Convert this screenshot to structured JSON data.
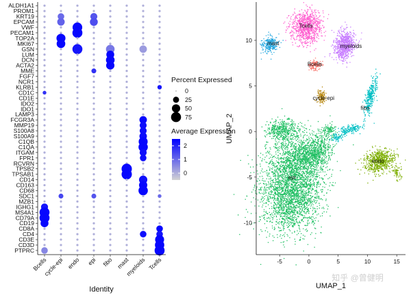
{
  "chart_data": [
    {
      "type": "dotplot",
      "xlabel": "Identity",
      "ylabel": "",
      "identities": [
        "Bcells",
        "cycle-epi",
        "endo",
        "epi",
        "fibo",
        "mast",
        "myeloids",
        "Tcells"
      ],
      "genes": [
        "ALDH1A1",
        "PROM1",
        "KRT19",
        "EPCAM",
        "VWF",
        "PECAM1",
        "TOP2A",
        "MKI67",
        "GSN",
        "LUM",
        "DCN",
        "ACTA2",
        "MME",
        "FGF7",
        "NCR1",
        "KLRB1",
        "CD1C",
        "CD1E",
        "IDO2",
        "IDO1",
        "LAMP3",
        "FCGR3A",
        "MMP19",
        "S100A8",
        "S100A9",
        "C1QB",
        "C1QA",
        "ITGAM",
        "FPR1",
        "RCVRN",
        "TPSB2",
        "TPSAB1",
        "CD14",
        "CD163",
        "CD68",
        "SDC1",
        "MZB1",
        "IGHG1",
        "MS4A1",
        "CD79A",
        "CD19",
        "CD8A",
        "CD4",
        "CD3E",
        "CD3D",
        "PTPRC"
      ],
      "dots": [
        {
          "gene": "KRT19",
          "identity": "cycle-epi",
          "pct": 30,
          "avg": 1.0
        },
        {
          "gene": "KRT19",
          "identity": "epi",
          "pct": 35,
          "avg": 1.3
        },
        {
          "gene": "EPCAM",
          "identity": "cycle-epi",
          "pct": 40,
          "avg": 1.1
        },
        {
          "gene": "EPCAM",
          "identity": "epi",
          "pct": 45,
          "avg": 1.4
        },
        {
          "gene": "VWF",
          "identity": "endo",
          "pct": 70,
          "avg": 2.4
        },
        {
          "gene": "PECAM1",
          "identity": "endo",
          "pct": 75,
          "avg": 2.4
        },
        {
          "gene": "TOP2A",
          "identity": "cycle-epi",
          "pct": 60,
          "avg": 2.4
        },
        {
          "gene": "MKI67",
          "identity": "cycle-epi",
          "pct": 55,
          "avg": 2.4
        },
        {
          "gene": "GSN",
          "identity": "endo",
          "pct": 75,
          "avg": 2.2
        },
        {
          "gene": "GSN",
          "identity": "fibo",
          "pct": 55,
          "avg": 0.8
        },
        {
          "gene": "GSN",
          "identity": "myeloids",
          "pct": 40,
          "avg": 0.3
        },
        {
          "gene": "LUM",
          "identity": "fibo",
          "pct": 45,
          "avg": 2.4
        },
        {
          "gene": "DCN",
          "identity": "fibo",
          "pct": 55,
          "avg": 2.4
        },
        {
          "gene": "ACTA2",
          "identity": "fibo",
          "pct": 50,
          "avg": 2.4
        },
        {
          "gene": "MME",
          "identity": "epi",
          "pct": 15,
          "avg": 1.8
        },
        {
          "gene": "KLRB1",
          "identity": "Tcells",
          "pct": 12,
          "avg": 2.2
        },
        {
          "gene": "CD1C",
          "identity": "Bcells",
          "pct": 8,
          "avg": 1.8
        },
        {
          "gene": "FCGR3A",
          "identity": "myeloids",
          "pct": 40,
          "avg": 2.4
        },
        {
          "gene": "MMP19",
          "identity": "myeloids",
          "pct": 35,
          "avg": 2.3
        },
        {
          "gene": "S100A8",
          "identity": "myeloids",
          "pct": 35,
          "avg": 2.3
        },
        {
          "gene": "S100A9",
          "identity": "myeloids",
          "pct": 40,
          "avg": 2.3
        },
        {
          "gene": "C1QB",
          "identity": "myeloids",
          "pct": 60,
          "avg": 2.4
        },
        {
          "gene": "C1QA",
          "identity": "myeloids",
          "pct": 65,
          "avg": 2.4
        },
        {
          "gene": "ITGAM",
          "identity": "myeloids",
          "pct": 35,
          "avg": 2.3
        },
        {
          "gene": "FPR1",
          "identity": "myeloids",
          "pct": 30,
          "avg": 2.3
        },
        {
          "gene": "TPSB2",
          "identity": "mast",
          "pct": 80,
          "avg": 2.4
        },
        {
          "gene": "TPSAB1",
          "identity": "mast",
          "pct": 80,
          "avg": 2.4
        },
        {
          "gene": "CD14",
          "identity": "myeloids",
          "pct": 50,
          "avg": 2.3
        },
        {
          "gene": "CD163",
          "identity": "myeloids",
          "pct": 50,
          "avg": 2.4
        },
        {
          "gene": "CD68",
          "identity": "myeloids",
          "pct": 65,
          "avg": 2.4
        },
        {
          "gene": "SDC1",
          "identity": "cycle-epi",
          "pct": 15,
          "avg": 1.5
        },
        {
          "gene": "SDC1",
          "identity": "epi",
          "pct": 15,
          "avg": 1.3
        },
        {
          "gene": "SDC1",
          "identity": "Tcells",
          "pct": 8,
          "avg": 1.0
        },
        {
          "gene": "IGHG1",
          "identity": "Bcells",
          "pct": 35,
          "avg": 2.2
        },
        {
          "gene": "MS4A1",
          "identity": "Bcells",
          "pct": 75,
          "avg": 2.4
        },
        {
          "gene": "CD79A",
          "identity": "Bcells",
          "pct": 75,
          "avg": 2.4
        },
        {
          "gene": "CD19",
          "identity": "Bcells",
          "pct": 45,
          "avg": 2.4
        },
        {
          "gene": "CD8A",
          "identity": "Tcells",
          "pct": 30,
          "avg": 2.4
        },
        {
          "gene": "CD4",
          "identity": "myeloids",
          "pct": 30,
          "avg": 2.3
        },
        {
          "gene": "CD4",
          "identity": "Tcells",
          "pct": 30,
          "avg": 2.2
        },
        {
          "gene": "CD3E",
          "identity": "Tcells",
          "pct": 60,
          "avg": 2.4
        },
        {
          "gene": "CD3D",
          "identity": "Tcells",
          "pct": 65,
          "avg": 2.4
        },
        {
          "gene": "PTPRC",
          "identity": "Bcells",
          "pct": 30,
          "avg": 0.6
        },
        {
          "gene": "PTPRC",
          "identity": "Tcells",
          "pct": 75,
          "avg": 2.4
        }
      ],
      "background_dot": {
        "pct": 2,
        "avg": 0.0
      },
      "legend_size": {
        "title": "Percent Expressed",
        "values": [
          0,
          25,
          50,
          75
        ]
      },
      "legend_color": {
        "title": "Average Expression",
        "ticks": [
          2,
          1,
          0
        ],
        "min": -0.5,
        "max": 2.5,
        "low_color": "#d3d3d3",
        "high_color": "#0000ff"
      }
    },
    {
      "type": "scatter",
      "title": "",
      "xlabel": "UMAP_1",
      "ylabel": "UMAP_2",
      "xticks": [
        -5,
        0,
        5,
        10,
        15
      ],
      "yticks": [
        -10,
        -5,
        0,
        5,
        10
      ],
      "xlim": [
        -9,
        16.5
      ],
      "ylim": [
        -13.5,
        14.2
      ],
      "clusters": [
        {
          "name": "Tcells",
          "color": "#ff5fd0",
          "x": -0.5,
          "y": 11.6
        },
        {
          "name": "mast",
          "color": "#24a7e0",
          "x": -6.1,
          "y": 9.7
        },
        {
          "name": "myeloids",
          "color": "#c77cff",
          "x": 7.2,
          "y": 9.4
        },
        {
          "name": "Bcells",
          "color": "#f8766d",
          "x": 1.0,
          "y": 7.4
        },
        {
          "name": "cycle-epi",
          "color": "#b8860b",
          "x": 2.5,
          "y": 3.7
        },
        {
          "name": "fibo",
          "color": "#00bfc4",
          "x": 9.6,
          "y": 2.6
        },
        {
          "name": "endo",
          "color": "#7cae00",
          "x": 11.8,
          "y": -3.2
        },
        {
          "name": "epi",
          "color": "#1fbf62",
          "x": -2.9,
          "y": -5.0
        }
      ]
    }
  ],
  "watermark": "知乎 @曾健明"
}
